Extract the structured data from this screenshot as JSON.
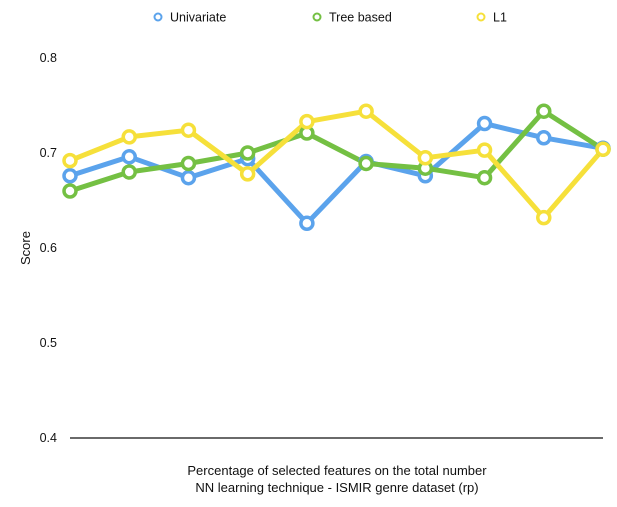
{
  "chart_data": {
    "type": "line",
    "title": "",
    "xlabel": "Percentage of selected features on the total number",
    "xlabel_line2": "NN learning technique - ISMIR genre dataset (rp)",
    "ylabel": "Score",
    "ylim": [
      0.4,
      0.8
    ],
    "yticks": [
      "0.8",
      "0.7",
      "0.6",
      "0.5",
      "0.4"
    ],
    "grid": false,
    "legend_position": "top",
    "x": [
      1,
      2,
      3,
      4,
      5,
      6,
      7,
      8,
      9,
      10
    ],
    "series": [
      {
        "name": "Univariate",
        "color": "#5BA3EC",
        "values": [
          0.676,
          0.696,
          0.674,
          0.694,
          0.626,
          0.691,
          0.676,
          0.731,
          0.716,
          0.705
        ]
      },
      {
        "name": "Tree based",
        "color": "#74C043",
        "values": [
          0.66,
          0.68,
          0.689,
          0.7,
          0.721,
          0.689,
          0.684,
          0.674,
          0.744,
          0.704
        ]
      },
      {
        "name": "L1",
        "color": "#F6E03A",
        "values": [
          0.692,
          0.717,
          0.724,
          0.678,
          0.733,
          0.744,
          0.695,
          0.703,
          0.632,
          0.704
        ]
      }
    ]
  }
}
